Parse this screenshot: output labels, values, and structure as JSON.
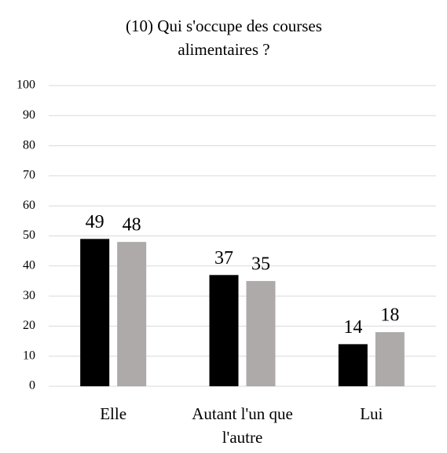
{
  "chart_data": {
    "type": "bar",
    "title": "(10) Qui s'occupe des courses alimentaires ?",
    "categories": [
      "Elle",
      "Autant l'un que l'autre",
      "Lui"
    ],
    "series": [
      {
        "color": "#000000",
        "values": [
          49,
          37,
          14
        ]
      },
      {
        "color": "#aeaaaa",
        "values": [
          48,
          35,
          18
        ]
      }
    ],
    "ylim": [
      0,
      100
    ],
    "yticks": [
      0,
      10,
      20,
      30,
      40,
      50,
      60,
      70,
      80,
      90,
      100
    ],
    "grid": true
  }
}
